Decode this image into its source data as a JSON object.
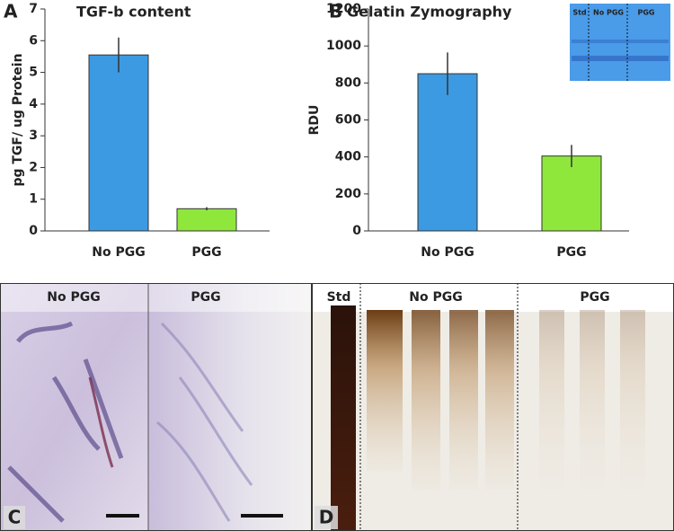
{
  "chart_data": [
    {
      "type": "bar",
      "panel_label": "A",
      "title": "TGF-b content",
      "y_label": "pg TGF/ ug Protein",
      "categories": [
        "No PGG",
        "PGG"
      ],
      "values": [
        5.55,
        0.7
      ],
      "errors": [
        0.55,
        0.05
      ],
      "colors": [
        "#3c9ae2",
        "#8fe73c"
      ],
      "ylim": [
        0,
        7
      ],
      "yticks": [
        0,
        1,
        2,
        3,
        4,
        5,
        6,
        7
      ]
    },
    {
      "type": "bar",
      "panel_label": "B",
      "title": "Gelatin Zymography",
      "y_label": "RDU",
      "categories": [
        "No PGG",
        "PGG"
      ],
      "values": [
        850,
        405
      ],
      "errors": [
        115,
        60
      ],
      "colors": [
        "#3c9ae2",
        "#8fe73c"
      ],
      "ylim": [
        0,
        1200
      ],
      "yticks": [
        0,
        200,
        400,
        600,
        800,
        1000,
        1200
      ],
      "inset_labels": [
        "Std",
        "No PGG",
        "PGG"
      ]
    }
  ],
  "images": [
    {
      "panel_label": "C",
      "lanes": [
        "No PGG",
        "PGG"
      ]
    },
    {
      "panel_label": "D",
      "lanes": [
        "Std",
        "No PGG",
        "PGG"
      ]
    }
  ]
}
